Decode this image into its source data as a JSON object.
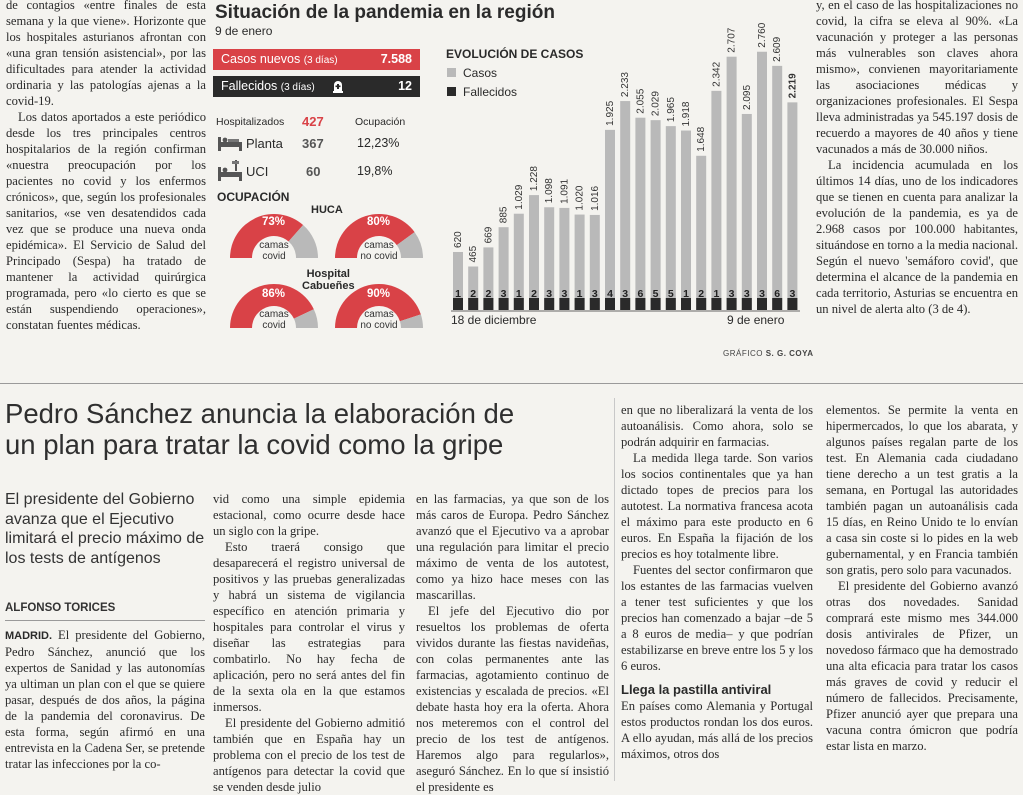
{
  "top_left_col": [
    "de contagios «entre finales de esta semana y la que viene». Horizonte que los hospitales asturianos afrontan con «una gran tensión asistencial», por las dificultades para atender la actividad ordinaria y las patologías ajenas a la covid-19.",
    "Los datos aportados a este periódico desde los tres principales centros hospitalarios de la región confirman «nuestra preocupación por los pacientes no covid y los enfermos crónicos», que, según los profesionales sanitarios, «se ven desatendidos cada vez que se produce una nueva onda epidémica». El Servicio de Salud del Principado (Sespa) ha tratado de mantener la actividad quirúrgica programada, pero «lo cierto es que se están suspendiendo operaciones», constatan fuentes médicas."
  ],
  "top_right_col": [
    "y, en el caso de las hospitalizaciones no covid, la cifra se eleva al 90%. «La vacunación y proteger a las personas más vulnerables son claves ahora mismo», convienen mayoritariamente las asociaciones médicas y organizaciones profesionales. El Sespa lleva administradas ya 545.197 dosis de recuerdo a mayores de 40 años y tiene vacunados a más de 30.000 niños.",
    "La incidencia acumulada en los últimos 14 días, uno de los indicadores que se tienen en cuenta para analizar la evolución de la pandemia, es ya de 2.968 casos por 100.000 habitantes, situándose en torno a la media nacional. Según el nuevo 'semáforo covid', que determina el alcance de la pandemia en cada territorio, Asturias se encuentra en un nivel de alerta alto (3 de 4)."
  ],
  "infographic": {
    "title": "Situación de la pandemia en la región",
    "date": "9 de enero",
    "casos_label": "Casos nuevos",
    "casos_sub": "(3 días)",
    "casos_value": "7.588",
    "fallecidos_label": "Fallecidos",
    "fallecidos_sub": "(3 días)",
    "fallecidos_value": "12",
    "hosp_label": "Hospitalizados",
    "hosp_value": "427",
    "ocup_label": "Ocupación",
    "planta_label": "Planta",
    "planta_value": "367",
    "planta_ocup": "12,23%",
    "uci_label": "UCI",
    "uci_value": "60",
    "uci_ocup": "19,8%",
    "ocupacion_title": "OCUPACIÓN",
    "huca_label": "HUCA",
    "cabuenes_label": "Hospital\nCabueñes",
    "donuts": [
      {
        "pct": "73%",
        "value": 0.73,
        "label": "camas\ncovid"
      },
      {
        "pct": "80%",
        "value": 0.8,
        "label": "camas\nno covid"
      },
      {
        "pct": "86%",
        "value": 0.86,
        "label": "camas\ncovid"
      },
      {
        "pct": "90%",
        "value": 0.9,
        "label": "camas\nno covid"
      }
    ],
    "credit_prefix": "GRÁFICO",
    "credit_author": "S. G. COYA",
    "colors": {
      "red": "#d94247",
      "dark": "#2a2a2a",
      "gray": "#b9b9b9",
      "dgray": "#8c8c8c"
    }
  },
  "chart_data": {
    "type": "bar",
    "title": "EVOLUCIÓN DE CASOS",
    "series": [
      {
        "name": "Casos",
        "values": [
          620,
          465,
          669,
          885,
          1029,
          1228,
          1098,
          1091,
          1020,
          1016,
          1925,
          2233,
          2055,
          2029,
          1965,
          1918,
          1648,
          2342,
          2707,
          2095,
          2760,
          2609,
          2219
        ]
      },
      {
        "name": "Fallecidos",
        "values": [
          1,
          2,
          2,
          3,
          1,
          2,
          3,
          3,
          1,
          3,
          4,
          3,
          6,
          5,
          5,
          1,
          2,
          1,
          3,
          3,
          3,
          6,
          3
        ]
      }
    ],
    "casos_labels": [
      "620",
      "465",
      "669",
      "885",
      "1.029",
      "1.228",
      "1.098",
      "1.091",
      "1.020",
      "1.016",
      "1.925",
      "2.233",
      "2.055",
      "2.029",
      "1.965",
      "1.918",
      "1.648",
      "2.342",
      "2.707",
      "2.095",
      "2.760",
      "2.609",
      "2.219"
    ],
    "x_start_label": "18 de diciembre",
    "x_end_label": "9 de enero",
    "ylim": [
      0,
      2800
    ]
  },
  "article": {
    "headline": "Pedro Sánchez anuncia la elaboración de un plan para tratar la covid como la gripe",
    "deck": "El presidente del Gobierno avanza que el Ejecutivo limitará el precio máximo de los tests de antígenos",
    "byline": "ALFONSO TORICES",
    "dateline": "MADRID.",
    "col1": "El presidente del Gobierno, Pedro Sánchez, anunció que los expertos de Sanidad y las autonomías ya ultiman un plan con el que se quiere pasar, después de dos años, la página de la pandemia del coronavirus. De esta forma, según afirmó en una entrevista en la Cadena Ser, se pretende tratar las infecciones por la co-",
    "col2": [
      "vid como una simple epidemia estacional, como ocurre desde hace un siglo con la gripe.",
      "Esto traerá consigo que desaparecerá el registro universal de positivos y las pruebas generalizadas y habrá un sistema de vigilancia específico en atención primaria y hospitales para controlar el virus y diseñar las estrategias para combatirlo. No hay fecha de aplicación, pero no será antes del fin de la sexta ola en la que estamos inmersos.",
      "El presidente del Gobierno admitió también que en España hay un problema con el precio de los test de antígenos para detectar la covid que se venden desde julio"
    ],
    "col3": [
      "en las farmacias, ya que son de los más caros de Europa. Pedro Sánchez avanzó que el Ejecutivo va a aprobar una regulación para limitar el precio máximo de venta de los autotest, como ya hizo hace meses con las mascarillas.",
      "El jefe del Ejecutivo dio por resueltos los problemas de oferta vividos durante las fiestas navideñas, con colas permanentes ante las farmacias, agotamiento continuo de existencias y escalada de precios. «El debate hasta hoy era la oferta. Ahora nos meteremos con el control del precio de los test de antígenos. Haremos algo para regularlos», aseguró Sánchez. En lo que sí insistió el presidente es"
    ],
    "col4": [
      "en que no liberalizará la venta de los autoanálisis. Como ahora, solo se podrán adquirir en farmacias.",
      "La medida llega tarde. Son varios los socios continentales que ya han dictado topes de precios para los autotest. La normativa francesa acota el máximo para este producto en 6 euros. En España la fijación de los precios es hoy totalmente libre.",
      "Fuentes del sector confirmaron que los estantes de las farmacias vuelven a tener test suficientes y que los precios han comenzado a bajar –de 5 a 8 euros de media– y que podrían estabilizarse en breve entre los 5 y los 6 euros."
    ],
    "subhead": "Llega la pastilla antiviral",
    "col4_after": "En países como Alemania y Portugal estos productos rondan los dos euros. A ello ayudan, más allá de los precios máximos, otros dos",
    "col5": [
      "elementos. Se permite la venta en hipermercados, lo que los abarata, y algunos países regalan parte de los test. En Alemania cada ciudadano tiene derecho a un test gratis a la semana, en Portugal las autoridades también pagan un autoanálisis cada 15 días, en Reino Unido te lo envían a casa sin coste si lo pides en la web gubernamental, y en Francia también son gratis, pero solo para vacunados.",
      "El presidente del Gobierno avanzó otras dos novedades. Sanidad comprará este mismo mes 344.000 dosis antivirales de Pfizer, un novedoso fármaco que ha demostrado una alta eficacia para tratar los casos más graves de covid y reducir el número de fallecidos. Precisamente, Pfizer anunció ayer que prepara una vacuna contra ómicron que podría estar lista en marzo."
    ]
  }
}
